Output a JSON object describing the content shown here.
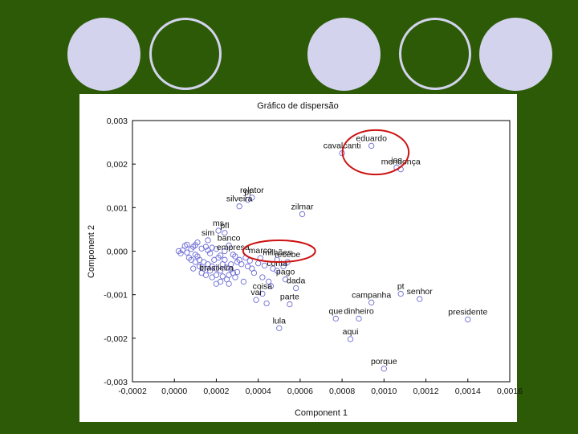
{
  "colors": {
    "background": "#2d5a06",
    "decor_circle": "#d3d3ee",
    "marker": "#6b6bd6",
    "highlight": "#cc1111"
  },
  "decor_circles": [
    {
      "style": "filled"
    },
    {
      "style": "ring"
    },
    {
      "style": "filled"
    },
    {
      "style": "ring"
    },
    {
      "style": "filled"
    }
  ],
  "chart_data": {
    "type": "scatter",
    "title": "Gráfico de dispersão",
    "xlabel": "Component 1",
    "ylabel": "Component 2",
    "xlim": [
      -0.0002,
      0.0016
    ],
    "ylim": [
      -0.003,
      0.003
    ],
    "grid": false,
    "xticks": [
      "-0,0002",
      "0,0000",
      "0,0002",
      "0,0004",
      "0,0006",
      "0,0008",
      "0,0010",
      "0,0012",
      "0,0014",
      "0,0016"
    ],
    "yticks": [
      "0,003",
      "0,002",
      "0,001",
      "0,000",
      "-0,001",
      "-0,002",
      "-0,003"
    ],
    "labeled_points": [
      {
        "label": "eduardo",
        "x": 0.00094,
        "y": 0.00242
      },
      {
        "label": "cavalcanti",
        "x": 0.0008,
        "y": 0.00225
      },
      {
        "label": "mendonça",
        "x": 0.00108,
        "y": 0.00188
      },
      {
        "label": "jos",
        "x": 0.00106,
        "y": 0.00192
      },
      {
        "label": "relator",
        "x": 0.00037,
        "y": 0.00123
      },
      {
        "label": "pf",
        "x": 0.00035,
        "y": 0.00118
      },
      {
        "label": "silveira",
        "x": 0.00031,
        "y": 0.00103
      },
      {
        "label": "zilmar",
        "x": 0.00061,
        "y": 0.00085
      },
      {
        "label": "ms",
        "x": 0.00021,
        "y": 0.00047
      },
      {
        "label": "pfl",
        "x": 0.00024,
        "y": 0.00042
      },
      {
        "label": "sim",
        "x": 0.00016,
        "y": 0.00025
      },
      {
        "label": "banco",
        "x": 0.00026,
        "y": 0.00013
      },
      {
        "label": "empresa",
        "x": 0.00028,
        "y": -8e-05
      },
      {
        "label": "marco",
        "x": 0.00041,
        "y": -0.00016
      },
      {
        "label": "milhões",
        "x": 0.00049,
        "y": -0.0002
      },
      {
        "label": "recebe",
        "x": 0.00054,
        "y": -0.00025
      },
      {
        "label": "conta",
        "x": 0.00049,
        "y": -0.00045
      },
      {
        "label": "pago",
        "x": 0.00053,
        "y": -0.00065
      },
      {
        "label": "dada",
        "x": 0.00058,
        "y": -0.00085
      },
      {
        "label": "brasileira",
        "x": 0.0002,
        "y": -0.00055
      },
      {
        "label": "coisa",
        "x": 0.00042,
        "y": -0.00098
      },
      {
        "label": "vai",
        "x": 0.00039,
        "y": -0.00112
      },
      {
        "label": "parte",
        "x": 0.00055,
        "y": -0.00122
      },
      {
        "label": "lula",
        "x": 0.0005,
        "y": -0.00177
      },
      {
        "label": "campanha",
        "x": 0.00094,
        "y": -0.00118
      },
      {
        "label": "pt",
        "x": 0.00108,
        "y": -0.00098
      },
      {
        "label": "senhor",
        "x": 0.00117,
        "y": -0.0011
      },
      {
        "label": "que",
        "x": 0.00077,
        "y": -0.00155
      },
      {
        "label": "dinheiro",
        "x": 0.00088,
        "y": -0.00155
      },
      {
        "label": "presidente",
        "x": 0.0014,
        "y": -0.00157
      },
      {
        "label": "aqui",
        "x": 0.00084,
        "y": -0.00202
      },
      {
        "label": "porque",
        "x": 0.001,
        "y": -0.0027
      }
    ],
    "cluster_points": [
      [
        2e-05,
        0.0
      ],
      [
        4e-05,
        2e-05
      ],
      [
        6e-05,
        -3e-05
      ],
      [
        8e-05,
        5e-05
      ],
      [
        0.0001,
        -8e-05
      ],
      [
        5e-05,
        0.00012
      ],
      [
        7e-05,
        -0.00015
      ],
      [
        9e-05,
        0.0001
      ],
      [
        0.00011,
        -0.00012
      ],
      [
        0.00013,
        6e-05
      ],
      [
        0.00012,
        -0.0002
      ],
      [
        0.00014,
        -0.00025
      ],
      [
        0.00016,
        -0.0003
      ],
      [
        0.00015,
        0.0001
      ],
      [
        0.00017,
        -5e-05
      ],
      [
        0.00018,
        -0.00035
      ],
      [
        0.0002,
        -0.0004
      ],
      [
        0.00022,
        -0.00045
      ],
      [
        0.00019,
        -0.0002
      ],
      [
        0.00021,
        -0.00015
      ],
      [
        0.00023,
        -0.0003
      ],
      [
        0.00025,
        -0.00038
      ],
      [
        0.00024,
        -0.0002
      ],
      [
        0.00027,
        -0.00042
      ],
      [
        0.00028,
        -0.0005
      ],
      [
        0.0003,
        -0.00048
      ],
      [
        0.00026,
        -0.00055
      ],
      [
        0.00029,
        -0.0006
      ],
      [
        0.00033,
        -0.0007
      ],
      [
        0.00018,
        -0.0006
      ],
      [
        0.00022,
        -0.0007
      ],
      [
        0.00025,
        -0.00065
      ],
      [
        0.0001,
        -0.00025
      ],
      [
        0.00012,
        -0.00035
      ],
      [
        0.00014,
        -0.0004
      ],
      [
        8e-05,
        -0.0002
      ],
      [
        6e-05,
        0.00015
      ],
      [
        0.0001,
        0.00014
      ],
      [
        3e-05,
        -5e-05
      ],
      [
        0.00016,
        2e-05
      ],
      [
        0.0002,
        5e-05
      ],
      [
        0.00022,
        -0.0001
      ],
      [
        0.00024,
        0.0
      ],
      [
        0.00018,
        8e-05
      ],
      [
        0.0003,
        -0.00025
      ],
      [
        0.00032,
        -0.0003
      ],
      [
        0.00035,
        -0.00035
      ],
      [
        0.00037,
        -0.0004
      ],
      [
        0.00031,
        -0.0002
      ],
      [
        0.00034,
        -0.00015
      ],
      [
        0.00036,
        -0.00022
      ],
      [
        0.0004,
        -0.00028
      ],
      [
        0.00043,
        -0.00033
      ],
      [
        0.00038,
        -0.0005
      ],
      [
        0.00042,
        -0.0006
      ],
      [
        0.00045,
        -0.0007
      ],
      [
        0.00047,
        -0.0004
      ],
      [
        0.00052,
        -0.00035
      ],
      [
        0.00046,
        -0.0008
      ],
      [
        0.00044,
        -0.0012
      ],
      [
        0.0002,
        -0.00075
      ],
      [
        0.00013,
        -0.0005
      ],
      [
        0.00017,
        -0.00045
      ],
      [
        0.00027,
        -0.0003
      ],
      [
        0.00029,
        -0.00012
      ],
      [
        0.00011,
        0.0002
      ],
      [
        9e-05,
        -0.0004
      ],
      [
        0.00015,
        -0.00055
      ],
      [
        0.00023,
        -0.00058
      ],
      [
        0.00026,
        -0.00075
      ]
    ],
    "highlights": [
      {
        "cx": 0.00096,
        "cy": 0.00227,
        "rx": 0.000158,
        "ry": 0.00051
      },
      {
        "cx": 0.0005,
        "cy": 0.0,
        "rx": 0.000172,
        "ry": 0.00025
      }
    ]
  }
}
